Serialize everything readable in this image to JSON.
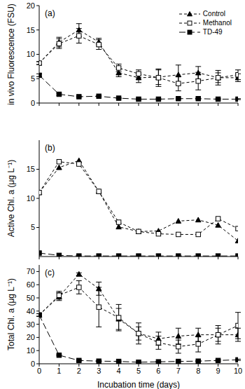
{
  "chart_data": [
    {
      "type": "line",
      "annotation": "(a)",
      "y_label": "in vivo Fluorescence (FSU)",
      "x": [
        0,
        1,
        2,
        3,
        4,
        5,
        6,
        7,
        8,
        9,
        10
      ],
      "xlim": [
        0,
        10
      ],
      "xticks": [
        0,
        1,
        2,
        3,
        4,
        5,
        6,
        7,
        8,
        9,
        10
      ],
      "ylim": [
        0,
        20
      ],
      "yticks": [
        0,
        5,
        10,
        15,
        20
      ],
      "tick_labels": "y",
      "legend": "top right",
      "series": [
        {
          "name": "Control",
          "color": "#000000",
          "marker": "triangle",
          "line_style": "dashed",
          "values": [
            8.2,
            12.5,
            15,
            12.5,
            6.2,
            5.2,
            5.3,
            5.8,
            6.2,
            5.2,
            5.2
          ],
          "error": [
            0.3,
            1,
            1.3,
            0.8,
            0.8,
            1,
            1.5,
            2,
            1.3,
            1.5,
            0.8
          ]
        },
        {
          "name": "Methanol",
          "color": "#000000",
          "marker": "open_square",
          "line_style": "dashed",
          "values": [
            8.2,
            12.2,
            13.8,
            12,
            7.2,
            6,
            5.2,
            4,
            4.5,
            5.2,
            5.8
          ],
          "error": [
            0.3,
            1,
            1.5,
            1,
            0.8,
            0.8,
            1.8,
            1.5,
            1.8,
            1,
            1
          ]
        },
        {
          "name": "TD-49",
          "color": "#000000",
          "marker": "square",
          "line_style": "longdash",
          "values": [
            5.7,
            1.8,
            1.3,
            1.4,
            1.0,
            0.8,
            0.8,
            0.9,
            0.9,
            0.8,
            0.8
          ],
          "error": [
            0.3,
            0.2,
            0.1,
            0.1,
            0.1,
            0.1,
            0.1,
            0.1,
            0.1,
            0.1,
            0.1
          ]
        }
      ]
    },
    {
      "type": "line",
      "annotation": "(b)",
      "y_label": "Active Chl. a (μg L⁻¹)",
      "x": [
        0,
        1,
        2,
        3,
        4,
        5,
        6,
        7,
        8,
        9,
        10
      ],
      "xlim": [
        0,
        10
      ],
      "xticks": [
        0,
        1,
        2,
        3,
        4,
        5,
        6,
        7,
        8,
        9,
        10
      ],
      "ylim": [
        0,
        20
      ],
      "yticks": [
        0,
        5,
        10,
        15
      ],
      "tick_labels": "y",
      "series": [
        {
          "name": "Control",
          "color": "#000000",
          "marker": "triangle",
          "line_style": "dashed",
          "values": [
            11,
            15.3,
            16.5,
            11.2,
            5.1,
            4.3,
            4.4,
            6.1,
            6.3,
            5.4,
            2.7
          ]
        },
        {
          "name": "Methanol",
          "color": "#000000",
          "marker": "open_square",
          "line_style": "dashed",
          "values": [
            11,
            16.3,
            15.9,
            11.2,
            5.9,
            4.3,
            3.9,
            3.8,
            3.8,
            6.5,
            4.8
          ]
        },
        {
          "name": "TD-49",
          "color": "#000000",
          "marker": "square",
          "line_style": "longdash",
          "values": [
            0.6,
            0.2,
            0.1,
            0.1,
            0.1,
            0.1,
            0.1,
            0.1,
            0.1,
            0.1,
            0.1
          ]
        }
      ]
    },
    {
      "type": "line",
      "annotation": "(c)",
      "y_label": "Total Chl. a (μg L⁻¹)",
      "x_label": "Incubation time (days)",
      "x": [
        0,
        1,
        2,
        3,
        4,
        5,
        6,
        7,
        8,
        9,
        10
      ],
      "xlim": [
        0,
        10
      ],
      "xticks": [
        0,
        1,
        2,
        3,
        4,
        5,
        6,
        7,
        8,
        9,
        10
      ],
      "ylim": [
        0,
        75
      ],
      "yticks": [
        0,
        10,
        20,
        30,
        40,
        50,
        60,
        70
      ],
      "series": [
        {
          "name": "Control",
          "color": "#000000",
          "marker": "triangle",
          "line_style": "dashed",
          "values": [
            37,
            51,
            68,
            57,
            34,
            23,
            19,
            21,
            22,
            22,
            22
          ],
          "error": [
            1,
            3,
            1,
            5,
            8,
            5,
            5,
            6,
            5,
            7,
            5
          ]
        },
        {
          "name": "Methanol",
          "color": "#000000",
          "marker": "open_square",
          "line_style": "dashed",
          "values": [
            37,
            52,
            58,
            43,
            35,
            23,
            16,
            13,
            15,
            22,
            29
          ],
          "error": [
            1,
            3,
            5,
            15,
            10,
            8,
            5,
            5,
            6,
            5,
            10
          ]
        },
        {
          "name": "TD-49",
          "color": "#000000",
          "marker": "square",
          "line_style": "longdash",
          "values": [
            37,
            6.5,
            2.5,
            2,
            1.8,
            1.2,
            1.5,
            1.8,
            2,
            2.5,
            3
          ],
          "error": [
            1,
            0.5,
            0.5,
            0.3,
            0.3,
            0.3,
            0.3,
            0.3,
            0.3,
            0.5,
            0.5
          ]
        }
      ]
    }
  ]
}
